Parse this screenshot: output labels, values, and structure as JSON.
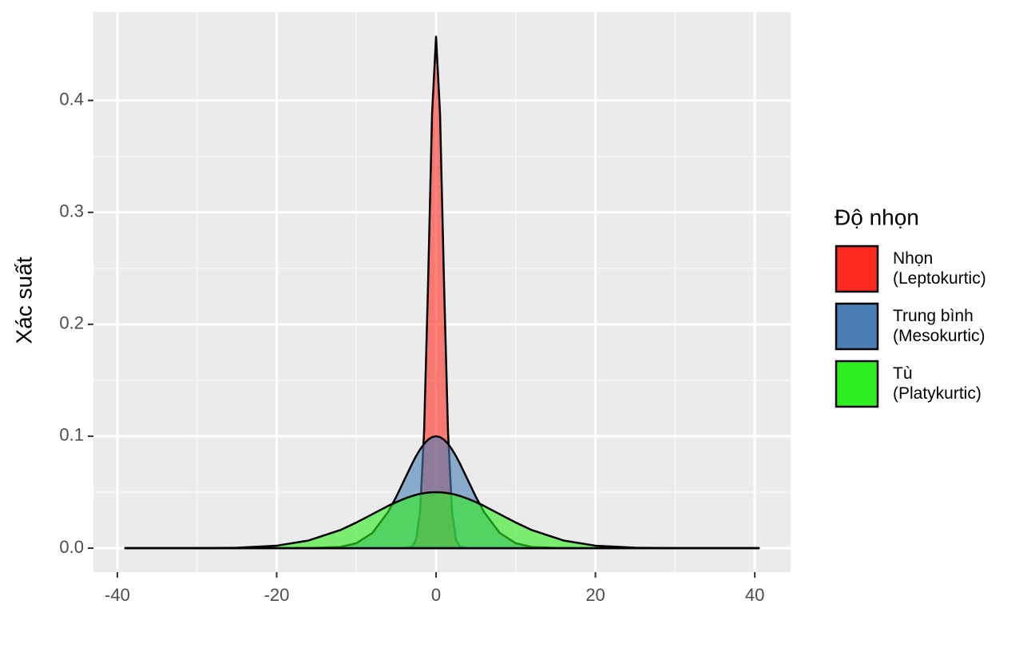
{
  "chart_data": {
    "type": "density",
    "y_label": "Xác suất",
    "legend_title": "Độ nhọn",
    "legend_position": "right",
    "grid": true,
    "xlim": [
      -43,
      44.5
    ],
    "ylim": [
      -0.0214,
      0.479
    ],
    "xticks": [
      -40,
      -20,
      0,
      20,
      40
    ],
    "yticks": [
      {
        "value": 0,
        "label": "0.0"
      },
      0.1,
      0.2,
      0.3,
      0.4
    ],
    "x": [
      -39,
      -30,
      -25,
      -20,
      -16,
      -12,
      -10,
      -8,
      -6,
      -5,
      -4,
      -3,
      -2.5,
      -2,
      -1.5,
      -1,
      -0.5,
      0,
      0.5,
      1,
      1.5,
      2,
      2.5,
      3,
      4,
      5,
      6,
      8,
      10,
      12,
      16,
      20,
      25,
      30,
      40.5
    ],
    "series": [
      {
        "name": "Nhọn\n(Leptokurtic)",
        "color": "#ff2a1f",
        "values": [
          0,
          0,
          0,
          0,
          0,
          0,
          0,
          0,
          0,
          0,
          0,
          0.0012,
          0.0076,
          0.033,
          0.104,
          0.237,
          0.388,
          0.457,
          0.388,
          0.237,
          0.104,
          0.033,
          0.0076,
          0.0012,
          0,
          0,
          0,
          0,
          0,
          0,
          0,
          0,
          0,
          0,
          0
        ]
      },
      {
        "name": "Trung bình\n(Mesokurtic)",
        "color": "#4a7fb5",
        "values": [
          0,
          0,
          0,
          0,
          0,
          0.0011,
          0.0044,
          0.0135,
          0.0325,
          0.0458,
          0.0607,
          0.0755,
          0.0823,
          0.0882,
          0.0932,
          0.0969,
          0.0992,
          0.1,
          0.0992,
          0.0969,
          0.0932,
          0.0882,
          0.0823,
          0.0755,
          0.0607,
          0.0458,
          0.0325,
          0.0135,
          0.0044,
          0.0011,
          0,
          0,
          0,
          0,
          0
        ]
      },
      {
        "name": "Tù\n(Platykurtic)",
        "color": "#2eee1f",
        "values": [
          0,
          0,
          0.0004,
          0.0022,
          0.0068,
          0.0162,
          0.0229,
          0.0303,
          0.0378,
          0.0411,
          0.0441,
          0.0466,
          0.0476,
          0.0485,
          0.0491,
          0.0496,
          0.0499,
          0.05,
          0.0499,
          0.0496,
          0.0491,
          0.0485,
          0.0476,
          0.0466,
          0.0441,
          0.0411,
          0.0378,
          0.0303,
          0.0229,
          0.0162,
          0.0068,
          0.0022,
          0.0004,
          0,
          0
        ]
      }
    ]
  }
}
